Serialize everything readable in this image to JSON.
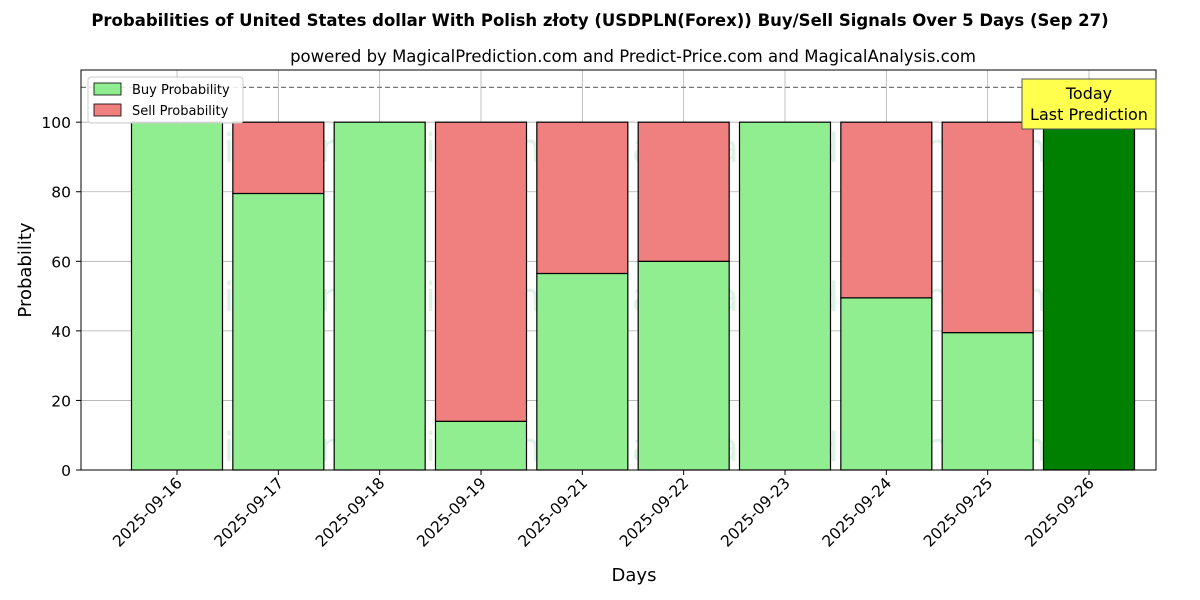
{
  "chart_data": {
    "type": "bar",
    "title": "Probabilities of United States dollar With Polish złoty (USDPLN(Forex)) Buy/Sell Signals Over 5 Days (Sep 27)",
    "subtitle": "powered by MagicalPrediction.com and Predict-Price.com and MagicalAnalysis.com",
    "xlabel": "Days",
    "ylabel": "Probability",
    "categories": [
      "2025-09-16",
      "2025-09-17",
      "2025-09-18",
      "2025-09-19",
      "2025-09-21",
      "2025-09-22",
      "2025-09-23",
      "2025-09-24",
      "2025-09-25",
      "2025-09-26"
    ],
    "series": [
      {
        "name": "Buy Probability",
        "color": "#90ee90",
        "values": [
          100,
          79.5,
          100,
          14,
          56.5,
          60,
          100,
          49.5,
          39.5,
          100
        ]
      },
      {
        "name": "Sell Probability",
        "color": "#f08080",
        "values": [
          0,
          20.5,
          0,
          86,
          43.5,
          40,
          0,
          50.5,
          60.5,
          0
        ]
      }
    ],
    "highlight": {
      "index": 9,
      "color": "#008000"
    },
    "ylim": [
      0,
      115
    ],
    "yticks": [
      0,
      20,
      40,
      60,
      80,
      100
    ],
    "reference_line": 110,
    "grid": true,
    "legend_position": "top-left",
    "annotation": {
      "lines": [
        "Today",
        "Last Prediction"
      ],
      "background": "#ffff4d"
    },
    "watermarks": [
      "MagicalAnalysis.com",
      "MagicalPrediction.com"
    ]
  }
}
